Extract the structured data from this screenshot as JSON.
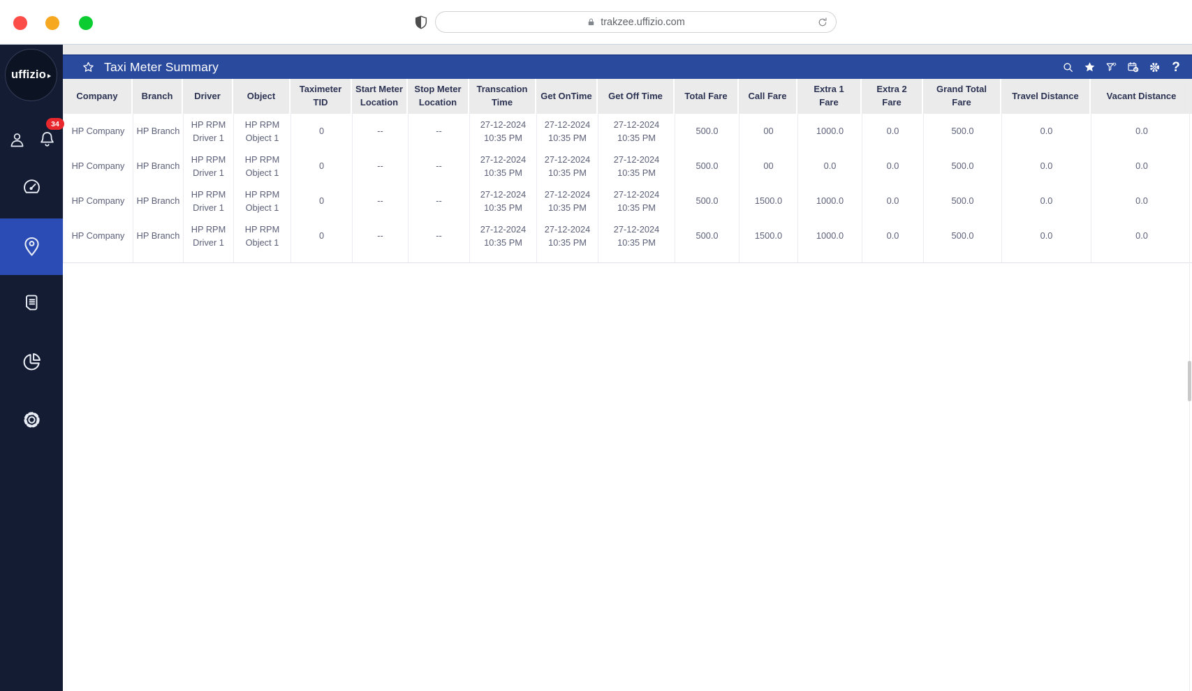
{
  "browser": {
    "url": "trakzee.uffizio.com",
    "traffic_lights": {
      "close": "#fc4d49",
      "minimize": "#f6a821",
      "zoom": "#0bcd32"
    },
    "icons": [
      "shield-icon",
      "lock-icon",
      "refresh-icon"
    ]
  },
  "sidebar": {
    "logo_text": "uffizio",
    "notification_badge": "34",
    "nav_icons": [
      "user-icon",
      "bell-icon",
      "dashboard-icon",
      "tracking-pin-icon",
      "reports-icon",
      "analytics-pie-icon",
      "settings-icon"
    ],
    "active_item": "tracking-pin"
  },
  "header": {
    "title": "Taxi Meter Summary",
    "icons": [
      "star-outline-icon",
      "search-icon",
      "favorite-star-icon",
      "filter-icon",
      "schedule-calendar-icon",
      "settings-gear-icon",
      "help-icon"
    ],
    "help_glyph": "?"
  },
  "table": {
    "columns": [
      "Company",
      "Branch",
      "Driver",
      "Object",
      "Taximeter\nTID",
      "Start Meter\nLocation",
      "Stop Meter\nLocation",
      "Transcation\nTime",
      "Get OnTime",
      "Get Off Time",
      "Total Fare",
      "Call Fare",
      "Extra 1\nFare",
      "Extra 2\nFare",
      "Grand Total\nFare",
      "Travel Distance",
      "Vacant Distance"
    ],
    "rows": [
      [
        "HP Company",
        "HP Branch",
        "HP RPM\nDriver 1",
        "HP RPM\nObject 1",
        "0",
        "--",
        "--",
        "27-12-2024\n10:35 PM",
        "27-12-2024\n10:35 PM",
        "27-12-2024\n10:35 PM",
        "500.0",
        "00",
        "1000.0",
        "0.0",
        "500.0",
        "0.0",
        "0.0"
      ],
      [
        "HP Company",
        "HP Branch",
        "HP RPM\nDriver 1",
        "HP RPM\nObject 1",
        "0",
        "--",
        "--",
        "27-12-2024\n10:35 PM",
        "27-12-2024\n10:35 PM",
        "27-12-2024\n10:35 PM",
        "500.0",
        "00",
        "0.0",
        "0.0",
        "500.0",
        "0.0",
        "0.0"
      ],
      [
        "HP Company",
        "HP Branch",
        "HP RPM\nDriver 1",
        "HP RPM\nObject 1",
        "0",
        "--",
        "--",
        "27-12-2024\n10:35 PM",
        "27-12-2024\n10:35 PM",
        "27-12-2024\n10:35 PM",
        "500.0",
        "1500.0",
        "1000.0",
        "0.0",
        "500.0",
        "0.0",
        "0.0"
      ],
      [
        "HP Company",
        "HP Branch",
        "HP RPM\nDriver 1",
        "HP RPM\nObject 1",
        "0",
        "--",
        "--",
        "27-12-2024\n10:35 PM",
        "27-12-2024\n10:35 PM",
        "27-12-2024\n10:35 PM",
        "500.0",
        "1500.0",
        "1000.0",
        "0.0",
        "500.0",
        "0.0",
        "0.0"
      ]
    ]
  },
  "colors": {
    "app_bar": "#2a4a9e",
    "sidebar": "#141c33",
    "sidebar_active": "#2b4cb4",
    "header_bg": "#ebebeb",
    "badge": "#e8282d"
  }
}
